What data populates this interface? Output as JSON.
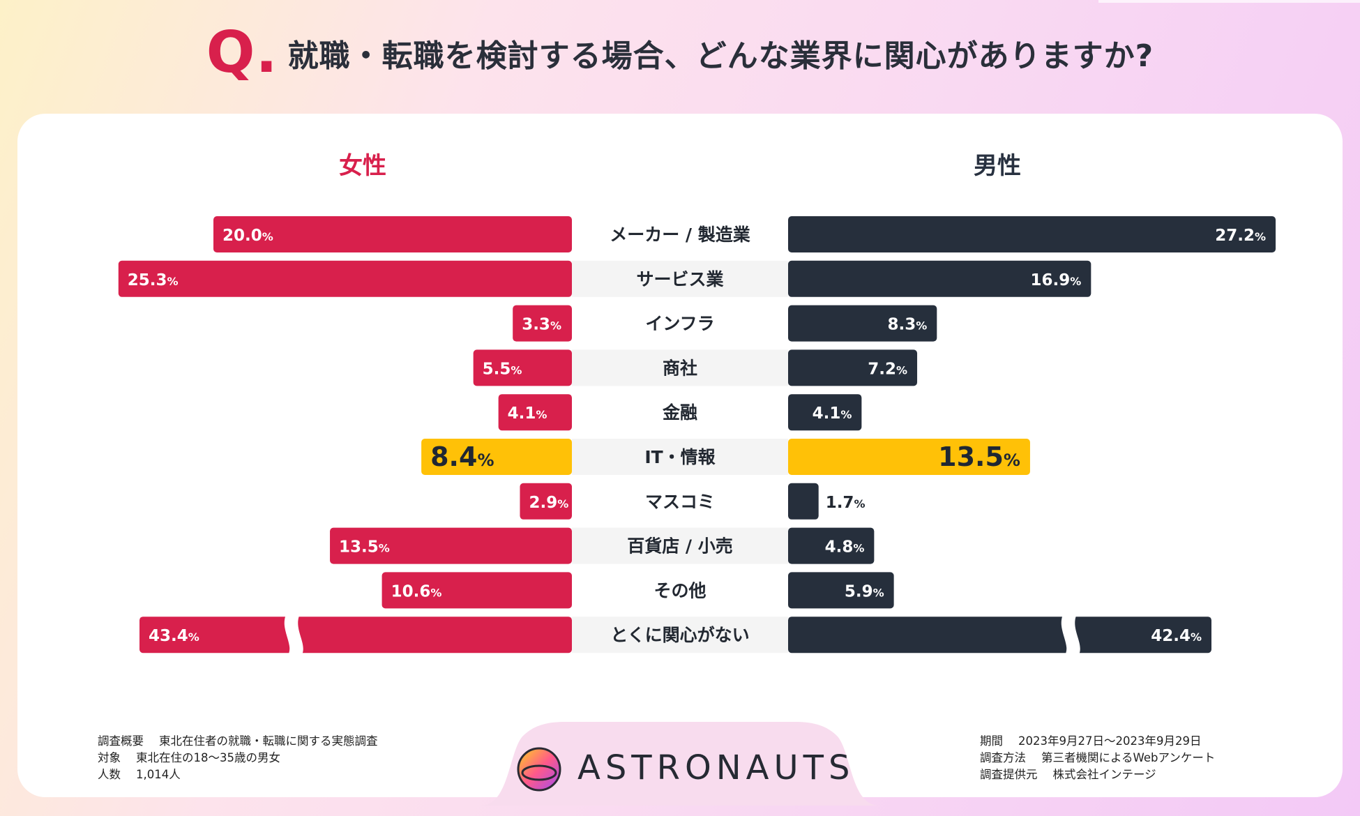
{
  "title": {
    "q_mark": "Q.",
    "text": "就職・転職を検討する場合、どんな業界に関心がありますか?"
  },
  "segments": {
    "female": "女性",
    "male": "男性"
  },
  "colors": {
    "female": "#d8204c",
    "male": "#262f3c",
    "highlight": "#ffc107",
    "stripe": "#f4f4f4"
  },
  "chart_data": {
    "type": "bar",
    "orientation": "horizontal-diverging",
    "title": "就職・転職を検討する場合、どんな業界に関心がありますか?",
    "unit": "%",
    "categories": [
      "メーカー / 製造業",
      "サービス業",
      "インフラ",
      "商社",
      "金融",
      "IT・情報",
      "マスコミ",
      "百貨店 / 小売",
      "その他",
      "とくに関心がない"
    ],
    "series": [
      {
        "name": "女性",
        "values": [
          20.0,
          25.3,
          3.3,
          5.5,
          4.1,
          8.4,
          2.9,
          13.5,
          10.6,
          43.4
        ]
      },
      {
        "name": "男性",
        "values": [
          27.2,
          16.9,
          8.3,
          7.2,
          4.1,
          13.5,
          1.7,
          4.8,
          5.9,
          42.4
        ]
      }
    ],
    "highlight_category": "IT・情報",
    "broken_axis_category": "とくに関心がない"
  },
  "footer": {
    "left": [
      {
        "key": "調査概要",
        "value": "東北在住者の就職・転職に関する実態調査"
      },
      {
        "key": "対象",
        "value": "東北在住の18〜35歳の男女"
      },
      {
        "key": "人数",
        "value": "1,014人"
      }
    ],
    "right": [
      {
        "key": "期間",
        "value": "2023年9月27日〜2023年9月29日"
      },
      {
        "key": "調査方法",
        "value": "第三者機関によるWebアンケート"
      },
      {
        "key": "調査提供元",
        "value": "株式会社インテージ"
      }
    ]
  },
  "logo": {
    "text": "ASTRONAUTS"
  }
}
